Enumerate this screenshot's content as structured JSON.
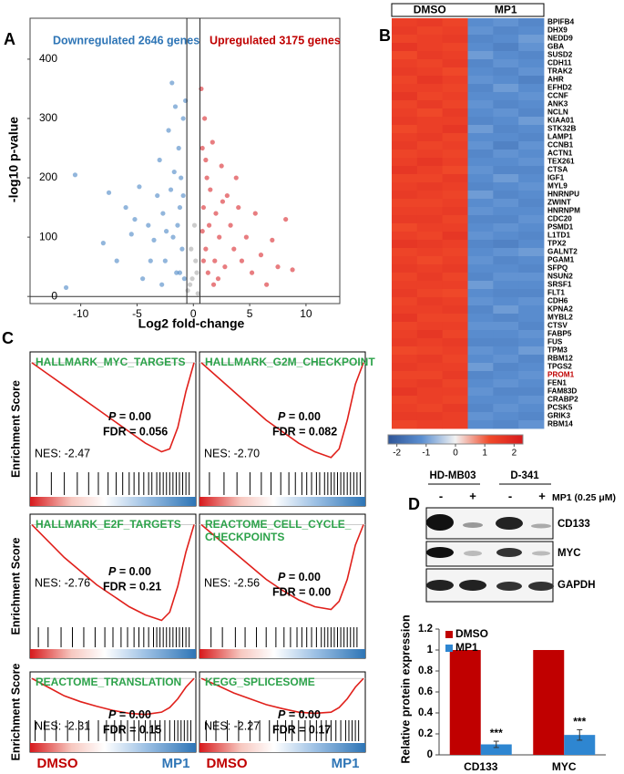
{
  "panel_labels": [
    "A",
    "B",
    "C",
    "D"
  ],
  "panel_c": {
    "y_label": "Enrichment Score",
    "left_label": "DMSO",
    "right_label": "MP1",
    "left_color": "#c00000",
    "right_color": "#2e75b6"
  },
  "panel_d_blot": {
    "cell_lines": [
      "HD-MB03",
      "D-341"
    ],
    "treatment_signs": [
      "-",
      "+",
      "-",
      "+"
    ],
    "treatment_label": "MP1 (0.25 μM)",
    "proteins": [
      "CD133",
      "MYC",
      "GAPDH"
    ]
  },
  "chart_data": [
    {
      "type": "scatter",
      "x_label": "Log2 fold-change",
      "y_label": "-log10 p-value",
      "annotations": [
        {
          "text": "Downregulated 2646 genes",
          "color": "#2e75b6"
        },
        {
          "text": "Upregulated 3175 genes",
          "color": "#c00000"
        }
      ],
      "thresholds": [
        -0.58,
        0.58
      ],
      "xlim": [
        -14.5,
        13
      ],
      "ylim": [
        -12,
        469
      ],
      "xticks": [
        -10,
        -5,
        0,
        5,
        10
      ],
      "yticks": [
        0,
        100,
        200,
        300,
        400
      ],
      "series": [
        {
          "color": "#4a86c5",
          "x": [
            -10.5,
            -11.3,
            -7.5,
            -6,
            -5.5,
            -4.8,
            -4,
            -3.5,
            -3,
            -2.7,
            -2.5,
            -2.2,
            -2,
            -1.8,
            -1.6,
            -1.5,
            -1.3,
            -1.2,
            -1.1,
            -1,
            -0.9,
            -0.8,
            -4.5,
            -6.8,
            -8,
            -3.2,
            -2.8,
            -1.9,
            -1.4,
            -0.7,
            -2.4,
            -1.7,
            -3.8,
            -5.2,
            -1.2,
            -0.9
          ],
          "y": [
            205,
            15,
            175,
            150,
            105,
            185,
            120,
            95,
            230,
            140,
            60,
            280,
            180,
            100,
            320,
            40,
            250,
            150,
            200,
            80,
            300,
            30,
            30,
            60,
            90,
            170,
            20,
            360,
            120,
            330,
            110,
            210,
            60,
            130,
            40,
            170
          ]
        },
        {
          "color": "#d9262b",
          "x": [
            0.7,
            0.8,
            0.9,
            1,
            1.1,
            1.2,
            1.4,
            1.5,
            1.7,
            1.9,
            2,
            2.3,
            2.5,
            2.8,
            3,
            3.3,
            3.6,
            4,
            4.3,
            4.7,
            5.2,
            5.5,
            6,
            6.5,
            7,
            7.5,
            8.2,
            8.8,
            3.8,
            2.2,
            1.3,
            0.9,
            1.8,
            2.6,
            1.1,
            0.8
          ],
          "y": [
            350,
            250,
            150,
            300,
            80,
            200,
            120,
            180,
            260,
            60,
            140,
            100,
            220,
            50,
            170,
            120,
            80,
            150,
            60,
            100,
            40,
            140,
            70,
            20,
            95,
            50,
            130,
            45,
            200,
            30,
            40,
            60,
            20,
            160,
            230,
            110
          ]
        },
        {
          "color": "#aaaaaa",
          "x": [
            -0.5,
            0.3,
            -0.2,
            0.4,
            0.1,
            -0.3,
            0.2,
            -0.1
          ],
          "y": [
            10,
            40,
            80,
            5,
            120,
            20,
            60,
            30
          ]
        }
      ]
    },
    {
      "type": "heatmap",
      "groups": [
        "DMSO",
        "MP1"
      ],
      "rows": [
        "BPIFB4",
        "DHX9",
        "NEDD9",
        "GBA",
        "SUSD2",
        "CDH11",
        "TRAK2",
        "AHR",
        "EFHD2",
        "CCNF",
        "ANK3",
        "NCLN",
        "KIAA01",
        "STK32B",
        "LAMP1",
        "CCNB1",
        "ACTN1",
        "TEX261",
        "CTSA",
        "IGF1",
        "MYL9",
        "HNRNPU",
        "ZWINT",
        "HNRNPM",
        "CDC20",
        "PSMD1",
        "L1TD1",
        "TPX2",
        "GALNT2",
        "PGAM1",
        "SFPQ",
        "NSUN2",
        "SRSF1",
        "FLT1",
        "CDH6",
        "KPNA2",
        "MYBL2",
        "CTSV",
        "FABP5",
        "FUS",
        "TPM3",
        "RBM12",
        "TPGS2",
        "PROM1",
        "FEN1",
        "FAM83D",
        "CRABP2",
        "PCSK5",
        "GRIK3",
        "RBM14"
      ],
      "highlight_rows": [
        "PROM1"
      ],
      "highlight_color": "#c00000",
      "values": [
        [
          1.4,
          1.5,
          1.3,
          -1.2,
          -1.1,
          -1.3
        ],
        [
          1.5,
          1.3,
          1.4,
          -1.1,
          -1.3,
          -1.2
        ],
        [
          1.3,
          1.4,
          1.5,
          -1.3,
          -1.2,
          -1.0
        ],
        [
          1.6,
          1.4,
          1.3,
          -1.2,
          -1.4,
          -1.1
        ],
        [
          1.2,
          1.5,
          1.4,
          -1.0,
          -1.2,
          -1.3
        ],
        [
          1.4,
          1.3,
          1.5,
          -1.3,
          -1.1,
          -1.2
        ],
        [
          1.5,
          1.4,
          1.2,
          -1.2,
          -1.3,
          -1.1
        ],
        [
          1.3,
          1.6,
          1.4,
          -1.1,
          -1.2,
          -1.4
        ],
        [
          1.4,
          1.4,
          1.3,
          -1.3,
          -1.0,
          -1.2
        ],
        [
          1.6,
          1.3,
          1.4,
          -1.2,
          -1.2,
          -1.1
        ],
        [
          1.3,
          1.5,
          1.3,
          -1.1,
          -1.3,
          -1.2
        ],
        [
          1.4,
          1.2,
          1.5,
          -1.2,
          -1.1,
          -1.3
        ],
        [
          1.5,
          1.4,
          1.4,
          -1.3,
          -1.2,
          -1.0
        ],
        [
          1.2,
          1.4,
          1.6,
          -1.0,
          -1.3,
          -1.2
        ],
        [
          1.4,
          1.5,
          1.3,
          -1.2,
          -1.2,
          -1.3
        ],
        [
          1.5,
          1.3,
          1.4,
          -1.1,
          -1.4,
          -1.1
        ],
        [
          1.3,
          1.4,
          1.3,
          -1.3,
          -1.1,
          -1.2
        ],
        [
          1.4,
          1.6,
          1.4,
          -1.2,
          -1.2,
          -1.1
        ],
        [
          1.6,
          1.4,
          1.2,
          -1.1,
          -1.3,
          -1.3
        ],
        [
          1.3,
          1.3,
          1.5,
          -1.2,
          -1.0,
          -1.2
        ],
        [
          1.4,
          1.5,
          1.4,
          -1.3,
          -1.2,
          -1.1
        ],
        [
          1.5,
          1.4,
          1.3,
          -1.0,
          -1.3,
          -1.2
        ],
        [
          1.3,
          1.3,
          1.4,
          -1.2,
          -1.1,
          -1.3
        ],
        [
          1.4,
          1.4,
          1.5,
          -1.1,
          -1.2,
          -1.2
        ],
        [
          1.5,
          1.5,
          1.3,
          -1.3,
          -1.3,
          -1.1
        ],
        [
          1.2,
          1.4,
          1.4,
          -1.2,
          -1.1,
          -1.2
        ],
        [
          1.4,
          1.3,
          1.6,
          -1.1,
          -1.2,
          -1.3
        ],
        [
          1.6,
          1.5,
          1.4,
          -1.3,
          -1.4,
          -1.2
        ],
        [
          1.3,
          1.4,
          1.3,
          -1.2,
          -1.1,
          -1.0
        ],
        [
          1.4,
          1.2,
          1.4,
          -1.1,
          -1.3,
          -1.2
        ],
        [
          1.5,
          1.4,
          1.5,
          -1.2,
          -1.2,
          -1.3
        ],
        [
          1.3,
          1.5,
          1.3,
          -1.3,
          -1.1,
          -1.1
        ],
        [
          1.4,
          1.4,
          1.4,
          -1.0,
          -1.2,
          -1.2
        ],
        [
          1.5,
          1.3,
          1.2,
          -1.2,
          -1.3,
          -1.3
        ],
        [
          1.3,
          1.5,
          1.4,
          -1.1,
          -1.2,
          -1.1
        ],
        [
          1.4,
          1.4,
          1.5,
          -1.3,
          -1.0,
          -1.2
        ],
        [
          1.6,
          1.3,
          1.3,
          -1.2,
          -1.3,
          -1.2
        ],
        [
          1.3,
          1.4,
          1.4,
          -1.1,
          -1.1,
          -1.3
        ],
        [
          1.4,
          1.6,
          1.3,
          -1.2,
          -1.2,
          -1.1
        ],
        [
          1.5,
          1.4,
          1.5,
          -1.3,
          -1.3,
          -1.2
        ],
        [
          1.2,
          1.3,
          1.4,
          -1.1,
          -1.2,
          -1.0
        ],
        [
          1.4,
          1.5,
          1.3,
          -1.2,
          -1.1,
          -1.3
        ],
        [
          1.5,
          1.4,
          1.4,
          -1.0,
          -1.3,
          -1.2
        ],
        [
          1.3,
          1.3,
          1.5,
          -1.3,
          -1.2,
          -1.1
        ],
        [
          1.4,
          1.5,
          1.3,
          -1.2,
          -1.1,
          -1.2
        ],
        [
          1.6,
          1.4,
          1.4,
          -1.1,
          -1.3,
          -1.3
        ],
        [
          1.3,
          1.4,
          1.3,
          -1.2,
          -1.2,
          -1.1
        ],
        [
          1.4,
          1.3,
          1.5,
          -1.3,
          -1.1,
          -1.2
        ],
        [
          1.5,
          1.5,
          1.4,
          -1.1,
          -1.2,
          -1.3
        ],
        [
          1.3,
          1.4,
          1.4,
          -1.2,
          -1.3,
          -1.1
        ]
      ],
      "clim": [
        -2.3,
        2.3
      ],
      "cticks": [
        -2,
        -1,
        0,
        1,
        2
      ],
      "colormap": [
        "#2f5597",
        "#5b8fd1",
        "#f2f2f2",
        "#f04a2a",
        "#d7191c"
      ]
    },
    {
      "type": "gsea",
      "title": [
        "HALLMARK_MYC_TARGETS"
      ],
      "p_label": "P = 0.00",
      "fdr_label": "FDR = 0.056",
      "nes_label": "NES: -2.47",
      "color": "#e0201b",
      "title_color": "#2ca24a",
      "ylim": [
        -0.75,
        0.05
      ],
      "curve_x": [
        0,
        0.1,
        0.2,
        0.3,
        0.4,
        0.5,
        0.6,
        0.7,
        0.8,
        0.85,
        0.9,
        0.95,
        1
      ],
      "curve": [
        0,
        -0.08,
        -0.16,
        -0.24,
        -0.32,
        -0.4,
        -0.48,
        -0.56,
        -0.62,
        -0.6,
        -0.45,
        -0.2,
        0
      ],
      "hits": [
        0.03,
        0.12,
        0.2,
        0.28,
        0.35,
        0.41,
        0.47,
        0.52,
        0.56,
        0.6,
        0.63,
        0.66,
        0.69,
        0.72,
        0.74,
        0.77,
        0.79,
        0.81,
        0.83,
        0.85,
        0.87,
        0.89,
        0.91,
        0.93,
        0.95,
        0.97
      ]
    },
    {
      "type": "gsea",
      "title": [
        "HALLMARK_G2M_CHECKPOINT"
      ],
      "p_label": "P = 0.00",
      "fdr_label": "FDR = 0.082",
      "nes_label": "NES: -2.70",
      "color": "#e0201b",
      "title_color": "#2ca24a",
      "ylim": [
        -0.75,
        0.05
      ],
      "curve_x": [
        0,
        0.1,
        0.2,
        0.3,
        0.4,
        0.5,
        0.6,
        0.7,
        0.8,
        0.85,
        0.9,
        0.95,
        1
      ],
      "curve": [
        0,
        -0.1,
        -0.2,
        -0.3,
        -0.4,
        -0.48,
        -0.56,
        -0.62,
        -0.66,
        -0.6,
        -0.4,
        -0.15,
        0
      ],
      "hits": [
        0.05,
        0.14,
        0.22,
        0.3,
        0.37,
        0.43,
        0.49,
        0.54,
        0.58,
        0.62,
        0.65,
        0.68,
        0.71,
        0.73,
        0.76,
        0.78,
        0.8,
        0.82,
        0.84,
        0.86,
        0.88,
        0.9,
        0.92,
        0.94,
        0.96,
        0.98
      ]
    },
    {
      "type": "gsea",
      "title": [
        "HALLMARK_E2F_TARGETS"
      ],
      "p_label": "P = 0.00",
      "fdr_label": "FDR = 0.21",
      "nes_label": "NES: -2.76",
      "color": "#e0201b",
      "title_color": "#2ca24a",
      "ylim": [
        -0.75,
        0.05
      ],
      "curve_x": [
        0,
        0.1,
        0.2,
        0.3,
        0.4,
        0.5,
        0.6,
        0.7,
        0.8,
        0.85,
        0.9,
        0.95,
        1
      ],
      "curve": [
        0,
        -0.12,
        -0.24,
        -0.34,
        -0.44,
        -0.52,
        -0.6,
        -0.66,
        -0.7,
        -0.64,
        -0.45,
        -0.2,
        0
      ],
      "hits": [
        0.04,
        0.1,
        0.18,
        0.25,
        0.32,
        0.39,
        0.45,
        0.5,
        0.55,
        0.59,
        0.63,
        0.66,
        0.69,
        0.72,
        0.75,
        0.77,
        0.79,
        0.81,
        0.83,
        0.85,
        0.87,
        0.89,
        0.91,
        0.93,
        0.95,
        0.97
      ]
    },
    {
      "type": "gsea",
      "title": [
        "REACTOME_CELL_CYCLE_",
        "CHECKPOINTS"
      ],
      "p_label": "P = 0.00",
      "fdr_label": "FDR = 0.00",
      "nes_label": "NES: -2.56",
      "color": "#e0201b",
      "title_color": "#2ca24a",
      "ylim": [
        -0.75,
        0.05
      ],
      "curve_x": [
        0,
        0.1,
        0.2,
        0.3,
        0.4,
        0.5,
        0.6,
        0.7,
        0.8,
        0.85,
        0.9,
        0.95,
        1
      ],
      "curve": [
        0,
        -0.1,
        -0.2,
        -0.3,
        -0.4,
        -0.48,
        -0.55,
        -0.6,
        -0.62,
        -0.56,
        -0.4,
        -0.15,
        0
      ],
      "hits": [
        0.06,
        0.13,
        0.21,
        0.27,
        0.34,
        0.4,
        0.46,
        0.51,
        0.55,
        0.59,
        0.62,
        0.65,
        0.68,
        0.71,
        0.74,
        0.76,
        0.78,
        0.8,
        0.82,
        0.84,
        0.86,
        0.88,
        0.9,
        0.92,
        0.94,
        0.96
      ]
    },
    {
      "type": "gsea",
      "title": [
        "REACTOME_TRANSLATION"
      ],
      "p_label": "P = 0.00",
      "fdr_label": "FDR = 0.15",
      "nes_label": "NES: -2.31",
      "color": "#e0201b",
      "title_color": "#2ca24a",
      "ylim": [
        -0.75,
        0.05
      ],
      "curve_x": [
        0,
        0.1,
        0.2,
        0.3,
        0.4,
        0.5,
        0.6,
        0.7,
        0.8,
        0.85,
        0.9,
        0.95,
        1
      ],
      "curve": [
        0,
        -0.15,
        -0.3,
        -0.4,
        -0.48,
        -0.55,
        -0.6,
        -0.62,
        -0.58,
        -0.5,
        -0.35,
        -0.15,
        0
      ],
      "hits": [
        0.02,
        0.08,
        0.15,
        0.22,
        0.29,
        0.35,
        0.41,
        0.46,
        0.51,
        0.55,
        0.59,
        0.63,
        0.66,
        0.7,
        0.73,
        0.76,
        0.79,
        0.82,
        0.85,
        0.88,
        0.9,
        0.92,
        0.94,
        0.96,
        0.98
      ]
    },
    {
      "type": "gsea",
      "title": [
        "KEGG_SPLICESOME"
      ],
      "p_label": "P = 0.00",
      "fdr_label": "FDR = 0.17",
      "nes_label": "NES: -2.27",
      "color": "#e0201b",
      "title_color": "#2ca24a",
      "ylim": [
        -0.75,
        0.05
      ],
      "curve_x": [
        0,
        0.1,
        0.2,
        0.3,
        0.4,
        0.5,
        0.6,
        0.7,
        0.8,
        0.85,
        0.9,
        0.95,
        1
      ],
      "curve": [
        0,
        -0.12,
        -0.25,
        -0.35,
        -0.45,
        -0.52,
        -0.58,
        -0.6,
        -0.58,
        -0.5,
        -0.35,
        -0.15,
        0
      ],
      "hits": [
        0.03,
        0.09,
        0.16,
        0.23,
        0.3,
        0.36,
        0.42,
        0.47,
        0.52,
        0.56,
        0.6,
        0.64,
        0.67,
        0.71,
        0.74,
        0.77,
        0.8,
        0.83,
        0.86,
        0.89,
        0.91,
        0.93,
        0.95,
        0.97
      ]
    },
    {
      "type": "bar",
      "y_label": "Relative protein expression",
      "categories": [
        "CD133",
        "MYC"
      ],
      "ylim": [
        0,
        1.2
      ],
      "yticks": [
        0,
        0.2,
        0.4,
        0.6,
        0.8,
        1,
        1.2
      ],
      "series": [
        {
          "name": "DMSO",
          "color": "#c00000",
          "values": [
            1,
            1
          ]
        },
        {
          "name": "MP1",
          "color": "#2e86d1",
          "values": [
            0.1,
            0.19
          ],
          "errors": [
            0.03,
            0.05
          ],
          "significance": [
            "***",
            "***"
          ]
        }
      ]
    }
  ]
}
